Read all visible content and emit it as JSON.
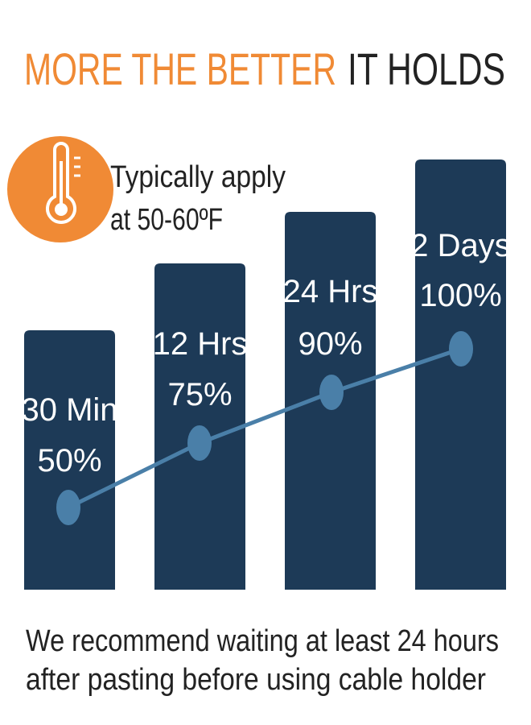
{
  "header": {
    "title_highlight": "MORE THE BETTER",
    "title_rest": "IT HOLDS"
  },
  "note": {
    "lines": [
      "Typically apply",
      "at 50-60ºF"
    ]
  },
  "bars": [
    {
      "time": "30 Min",
      "percent": "50%"
    },
    {
      "time": "12 Hrs",
      "percent": "75%"
    },
    {
      "time": "24 Hrs",
      "percent": "90%"
    },
    {
      "time": "2 Days",
      "percent": "100%"
    }
  ],
  "footer": {
    "lines": [
      "We recommend waiting at least 24 hours",
      "after pasting before using cable holder"
    ]
  }
}
